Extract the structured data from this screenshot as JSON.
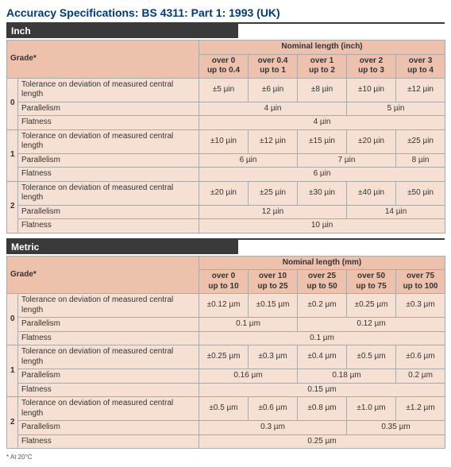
{
  "title": "Accuracy Specifications: BS 4311: Part 1: 1993 (UK)",
  "footnote": "* At 20°C",
  "sections": [
    {
      "bar": "Inch",
      "grade_header": "Grade*",
      "nominal_header": "Nominal length (inch)",
      "ranges": [
        {
          "top": "over 0",
          "bot": "up to 0.4"
        },
        {
          "top": "over 0.4",
          "bot": "up to 1"
        },
        {
          "top": "over 1",
          "bot": "up to 2"
        },
        {
          "top": "over 2",
          "bot": "up to 3"
        },
        {
          "top": "over 3",
          "bot": "up to 4"
        }
      ],
      "row_labels": {
        "tol": "Tolerance on deviation of measured central length",
        "par": "Parallelism",
        "flat": "Flatness"
      },
      "grades": [
        {
          "grade": "0",
          "tol": [
            "±5 µin",
            "±6 µin",
            "±8 µin",
            "±10 µin",
            "±12 µin"
          ],
          "par": [
            {
              "span": 3,
              "v": "4 µin"
            },
            {
              "span": 2,
              "v": "5 µin"
            }
          ],
          "flat": [
            {
              "span": 5,
              "v": "4 µin"
            }
          ]
        },
        {
          "grade": "1",
          "tol": [
            "±10 µin",
            "±12 µin",
            "±15 µin",
            "±20 µin",
            "±25 µin"
          ],
          "par": [
            {
              "span": 2,
              "v": "6 µin"
            },
            {
              "span": 2,
              "v": "7 µin"
            },
            {
              "span": 1,
              "v": "8 µin"
            }
          ],
          "flat": [
            {
              "span": 5,
              "v": "6 µin"
            }
          ]
        },
        {
          "grade": "2",
          "tol": [
            "±20 µin",
            "±25 µin",
            "±30 µin",
            "±40 µin",
            "±50 µin"
          ],
          "par": [
            {
              "span": 3,
              "v": "12 µin"
            },
            {
              "span": 2,
              "v": "14 µin"
            }
          ],
          "flat": [
            {
              "span": 5,
              "v": "10 µin"
            }
          ]
        }
      ]
    },
    {
      "bar": "Metric",
      "grade_header": "Grade*",
      "nominal_header": "Nominal length (mm)",
      "ranges": [
        {
          "top": "over 0",
          "bot": "up to 10"
        },
        {
          "top": "over 10",
          "bot": "up to 25"
        },
        {
          "top": "over 25",
          "bot": "up to 50"
        },
        {
          "top": "over 50",
          "bot": "up to 75"
        },
        {
          "top": "over 75",
          "bot": "up to 100"
        }
      ],
      "row_labels": {
        "tol": "Tolerance on deviation of measured central length",
        "par": "Parallelism",
        "flat": "Flatness"
      },
      "grades": [
        {
          "grade": "0",
          "tol": [
            "±0.12 µm",
            "±0.15 µm",
            "±0.2 µm",
            "±0.25 µm",
            "±0.3 µm"
          ],
          "par": [
            {
              "span": 2,
              "v": "0.1 µm"
            },
            {
              "span": 3,
              "v": "0.12 µm"
            }
          ],
          "flat": [
            {
              "span": 5,
              "v": "0.1 µm"
            }
          ]
        },
        {
          "grade": "1",
          "tol": [
            "±0.25 µm",
            "±0.3 µm",
            "±0.4 µm",
            "±0.5 µm",
            "±0.6 µm"
          ],
          "par": [
            {
              "span": 2,
              "v": "0.16 µm"
            },
            {
              "span": 2,
              "v": "0.18 µm"
            },
            {
              "span": 1,
              "v": "0.2 µm"
            }
          ],
          "flat": [
            {
              "span": 5,
              "v": "0.15 µm"
            }
          ]
        },
        {
          "grade": "2",
          "tol": [
            "±0.5 µm",
            "±0.6 µm",
            "±0.8 µm",
            "±1.0 µm",
            "±1.2 µm"
          ],
          "par": [
            {
              "span": 3,
              "v": "0.3 µm"
            },
            {
              "span": 2,
              "v": "0.35 µm"
            }
          ],
          "flat": [
            {
              "span": 5,
              "v": "0.25 µm"
            }
          ]
        }
      ]
    }
  ]
}
